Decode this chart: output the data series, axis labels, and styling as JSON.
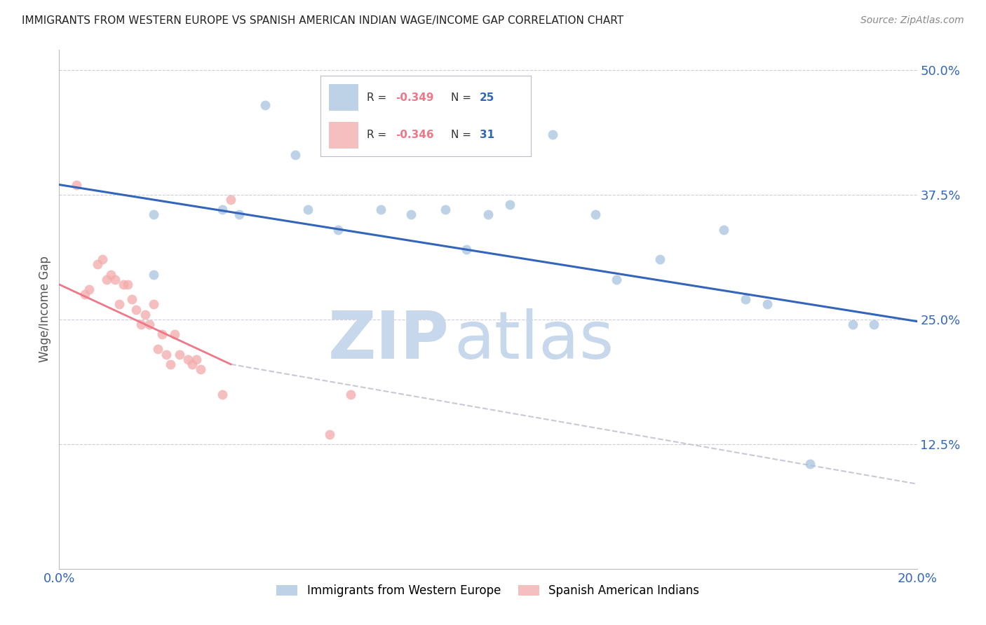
{
  "title": "IMMIGRANTS FROM WESTERN EUROPE VS SPANISH AMERICAN INDIAN WAGE/INCOME GAP CORRELATION CHART",
  "source": "Source: ZipAtlas.com",
  "ylabel": "Wage/Income Gap",
  "xmin": 0.0,
  "xmax": 0.2,
  "ymin": 0.0,
  "ymax": 0.52,
  "yticks": [
    0.0,
    0.125,
    0.25,
    0.375,
    0.5
  ],
  "ytick_labels": [
    "",
    "12.5%",
    "25.0%",
    "37.5%",
    "50.0%"
  ],
  "xticks": [
    0.0,
    0.04,
    0.08,
    0.12,
    0.16,
    0.2
  ],
  "xtick_labels": [
    "0.0%",
    "",
    "",
    "",
    "",
    "20.0%"
  ],
  "blue_scatter_x": [
    0.022,
    0.038,
    0.042,
    0.048,
    0.055,
    0.065,
    0.068,
    0.075,
    0.082,
    0.09,
    0.095,
    0.1,
    0.105,
    0.115,
    0.125,
    0.13,
    0.14,
    0.155,
    0.16,
    0.165,
    0.175,
    0.185,
    0.19,
    0.022,
    0.058
  ],
  "blue_scatter_y": [
    0.355,
    0.36,
    0.355,
    0.465,
    0.415,
    0.34,
    0.42,
    0.36,
    0.355,
    0.36,
    0.32,
    0.355,
    0.365,
    0.435,
    0.355,
    0.29,
    0.31,
    0.34,
    0.27,
    0.265,
    0.105,
    0.245,
    0.245,
    0.295,
    0.36
  ],
  "pink_scatter_x": [
    0.004,
    0.006,
    0.007,
    0.009,
    0.01,
    0.011,
    0.012,
    0.013,
    0.014,
    0.015,
    0.016,
    0.017,
    0.018,
    0.019,
    0.02,
    0.021,
    0.022,
    0.023,
    0.024,
    0.025,
    0.026,
    0.027,
    0.028,
    0.03,
    0.031,
    0.032,
    0.033,
    0.038,
    0.04,
    0.063,
    0.068
  ],
  "pink_scatter_y": [
    0.385,
    0.275,
    0.28,
    0.305,
    0.31,
    0.29,
    0.295,
    0.29,
    0.265,
    0.285,
    0.285,
    0.27,
    0.26,
    0.245,
    0.255,
    0.245,
    0.265,
    0.22,
    0.235,
    0.215,
    0.205,
    0.235,
    0.215,
    0.21,
    0.205,
    0.21,
    0.2,
    0.175,
    0.37,
    0.135,
    0.175
  ],
  "blue_line_x": [
    0.0,
    0.2
  ],
  "blue_line_y": [
    0.385,
    0.248
  ],
  "pink_line_x": [
    0.0,
    0.04
  ],
  "pink_line_y": [
    0.285,
    0.205
  ],
  "gray_dash_line_x": [
    0.04,
    0.2
  ],
  "gray_dash_line_y": [
    0.205,
    0.085
  ],
  "blue_color": "#A8C4E0",
  "pink_color": "#F4AAAA",
  "blue_line_color": "#3366BB",
  "pink_line_color": "#EE7788",
  "gray_line_color": "#C8C8D8",
  "scatter_size": 100,
  "legend_r_blue": "R = -0.349",
  "legend_n_blue": "N = 25",
  "legend_r_pink": "R = -0.346",
  "legend_n_pink": "N = 31",
  "legend_label_blue": "Immigrants from Western Europe",
  "legend_label_pink": "Spanish American Indians",
  "watermark_zip": "ZIP",
  "watermark_atlas": "atlas",
  "watermark_color": "#C8D8EC",
  "title_color": "#222222",
  "axis_label_color": "#3366BB",
  "tick_color": "#3366BB",
  "grid_color": "#CCCCDD"
}
